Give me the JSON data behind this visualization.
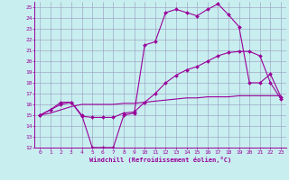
{
  "xlabel": "Windchill (Refroidissement éolien,°C)",
  "bg_color": "#c8eef0",
  "line_color": "#990099",
  "grid_color": "#9999bb",
  "xlim": [
    -0.5,
    23.5
  ],
  "ylim": [
    12,
    25.5
  ],
  "xticks": [
    0,
    1,
    2,
    3,
    4,
    5,
    6,
    7,
    8,
    9,
    10,
    11,
    12,
    13,
    14,
    15,
    16,
    17,
    18,
    19,
    20,
    21,
    22,
    23
  ],
  "yticks": [
    12,
    13,
    14,
    15,
    16,
    17,
    18,
    19,
    20,
    21,
    22,
    23,
    24,
    25
  ],
  "line1_x": [
    0,
    1,
    2,
    3,
    4,
    5,
    6,
    7,
    8,
    9,
    10,
    11,
    12,
    13,
    14,
    15,
    16,
    17,
    18,
    19,
    20,
    21,
    22,
    23
  ],
  "line1_y": [
    15,
    15.5,
    16.2,
    16.2,
    15,
    12,
    12,
    12,
    15,
    15.2,
    21.5,
    21.8,
    24.5,
    24.8,
    24.5,
    24.2,
    24.8,
    25.3,
    24.3,
    23.2,
    18,
    18,
    18.8,
    16.7
  ],
  "line2_x": [
    0,
    1,
    2,
    3,
    4,
    5,
    6,
    7,
    8,
    9,
    10,
    11,
    12,
    13,
    14,
    15,
    16,
    17,
    18,
    19,
    20,
    21,
    22,
    23
  ],
  "line2_y": [
    15,
    15.5,
    16,
    16.2,
    14.9,
    14.8,
    14.8,
    14.8,
    15.2,
    15.3,
    16.2,
    17.0,
    18.0,
    18.7,
    19.2,
    19.5,
    20.0,
    20.5,
    20.8,
    20.9,
    20.9,
    20.5,
    18.0,
    16.5
  ],
  "line3_x": [
    0,
    1,
    2,
    3,
    4,
    5,
    6,
    7,
    8,
    9,
    10,
    11,
    12,
    13,
    14,
    15,
    16,
    17,
    18,
    19,
    20,
    21,
    22,
    23
  ],
  "line3_y": [
    15,
    15.2,
    15.5,
    15.8,
    16.0,
    16.0,
    16.0,
    16.0,
    16.1,
    16.1,
    16.2,
    16.3,
    16.4,
    16.5,
    16.6,
    16.6,
    16.7,
    16.7,
    16.7,
    16.8,
    16.8,
    16.8,
    16.8,
    16.8
  ]
}
